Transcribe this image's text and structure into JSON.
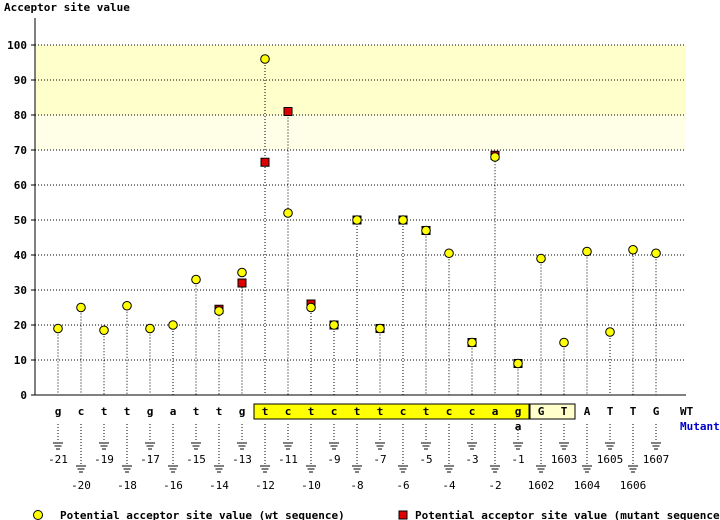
{
  "chart_data": {
    "type": "scatter",
    "title": "",
    "ylabel": "Acceptor site value",
    "ylim": [
      0,
      100
    ],
    "yticks": [
      0,
      10,
      20,
      30,
      40,
      50,
      60,
      70,
      80,
      90,
      100
    ],
    "highlight_band": {
      "from": 70,
      "to": 100
    },
    "grid": "horizontal dotted",
    "row_labels": {
      "wt": "WT",
      "mutant": "Mutant"
    },
    "categories": [
      "-21",
      "-20",
      "-19",
      "-18",
      "-17",
      "-16",
      "-15",
      "-14",
      "-13",
      "-12",
      "-11",
      "-10",
      "-9",
      "-8",
      "-7",
      "-6",
      "-5",
      "-4",
      "-3",
      "-2",
      "-1",
      "1602",
      "1603",
      "1604",
      "1605",
      "1606",
      "1607"
    ],
    "wt_bases": [
      "g",
      "c",
      "t",
      "t",
      "g",
      "a",
      "t",
      "t",
      "g",
      "t",
      "c",
      "t",
      "c",
      "t",
      "t",
      "c",
      "t",
      "c",
      "c",
      "a",
      "g",
      "G",
      "T",
      "A",
      "T",
      "T",
      "G"
    ],
    "mutant_bases": [
      "",
      "",
      "",
      "",
      "",
      "",
      "",
      "",
      "",
      "",
      "",
      "",
      "",
      "",
      "",
      "",
      "",
      "",
      "",
      "",
      "a",
      "",
      "",
      "",
      "",
      "",
      ""
    ],
    "series": [
      {
        "name": "Potential acceptor site value (wt sequence)",
        "marker": "circle",
        "color": "#ffff00",
        "values": [
          19,
          25,
          18.5,
          25.5,
          19,
          20,
          33,
          24,
          35,
          96,
          52,
          25,
          20,
          50,
          19,
          50,
          47,
          40.5,
          15,
          68,
          9,
          39,
          15,
          41,
          18,
          41.5,
          40.5
        ]
      },
      {
        "name": "Potential acceptor site value (mutant sequence)",
        "marker": "square",
        "color": "#dd0000",
        "values": [
          null,
          null,
          null,
          null,
          null,
          null,
          null,
          24.5,
          32,
          66.5,
          81,
          26,
          20,
          50,
          19,
          50,
          47,
          null,
          15,
          68.5,
          9,
          null,
          null,
          null,
          null,
          null,
          null
        ]
      }
    ],
    "legend_placement": "bottom"
  }
}
